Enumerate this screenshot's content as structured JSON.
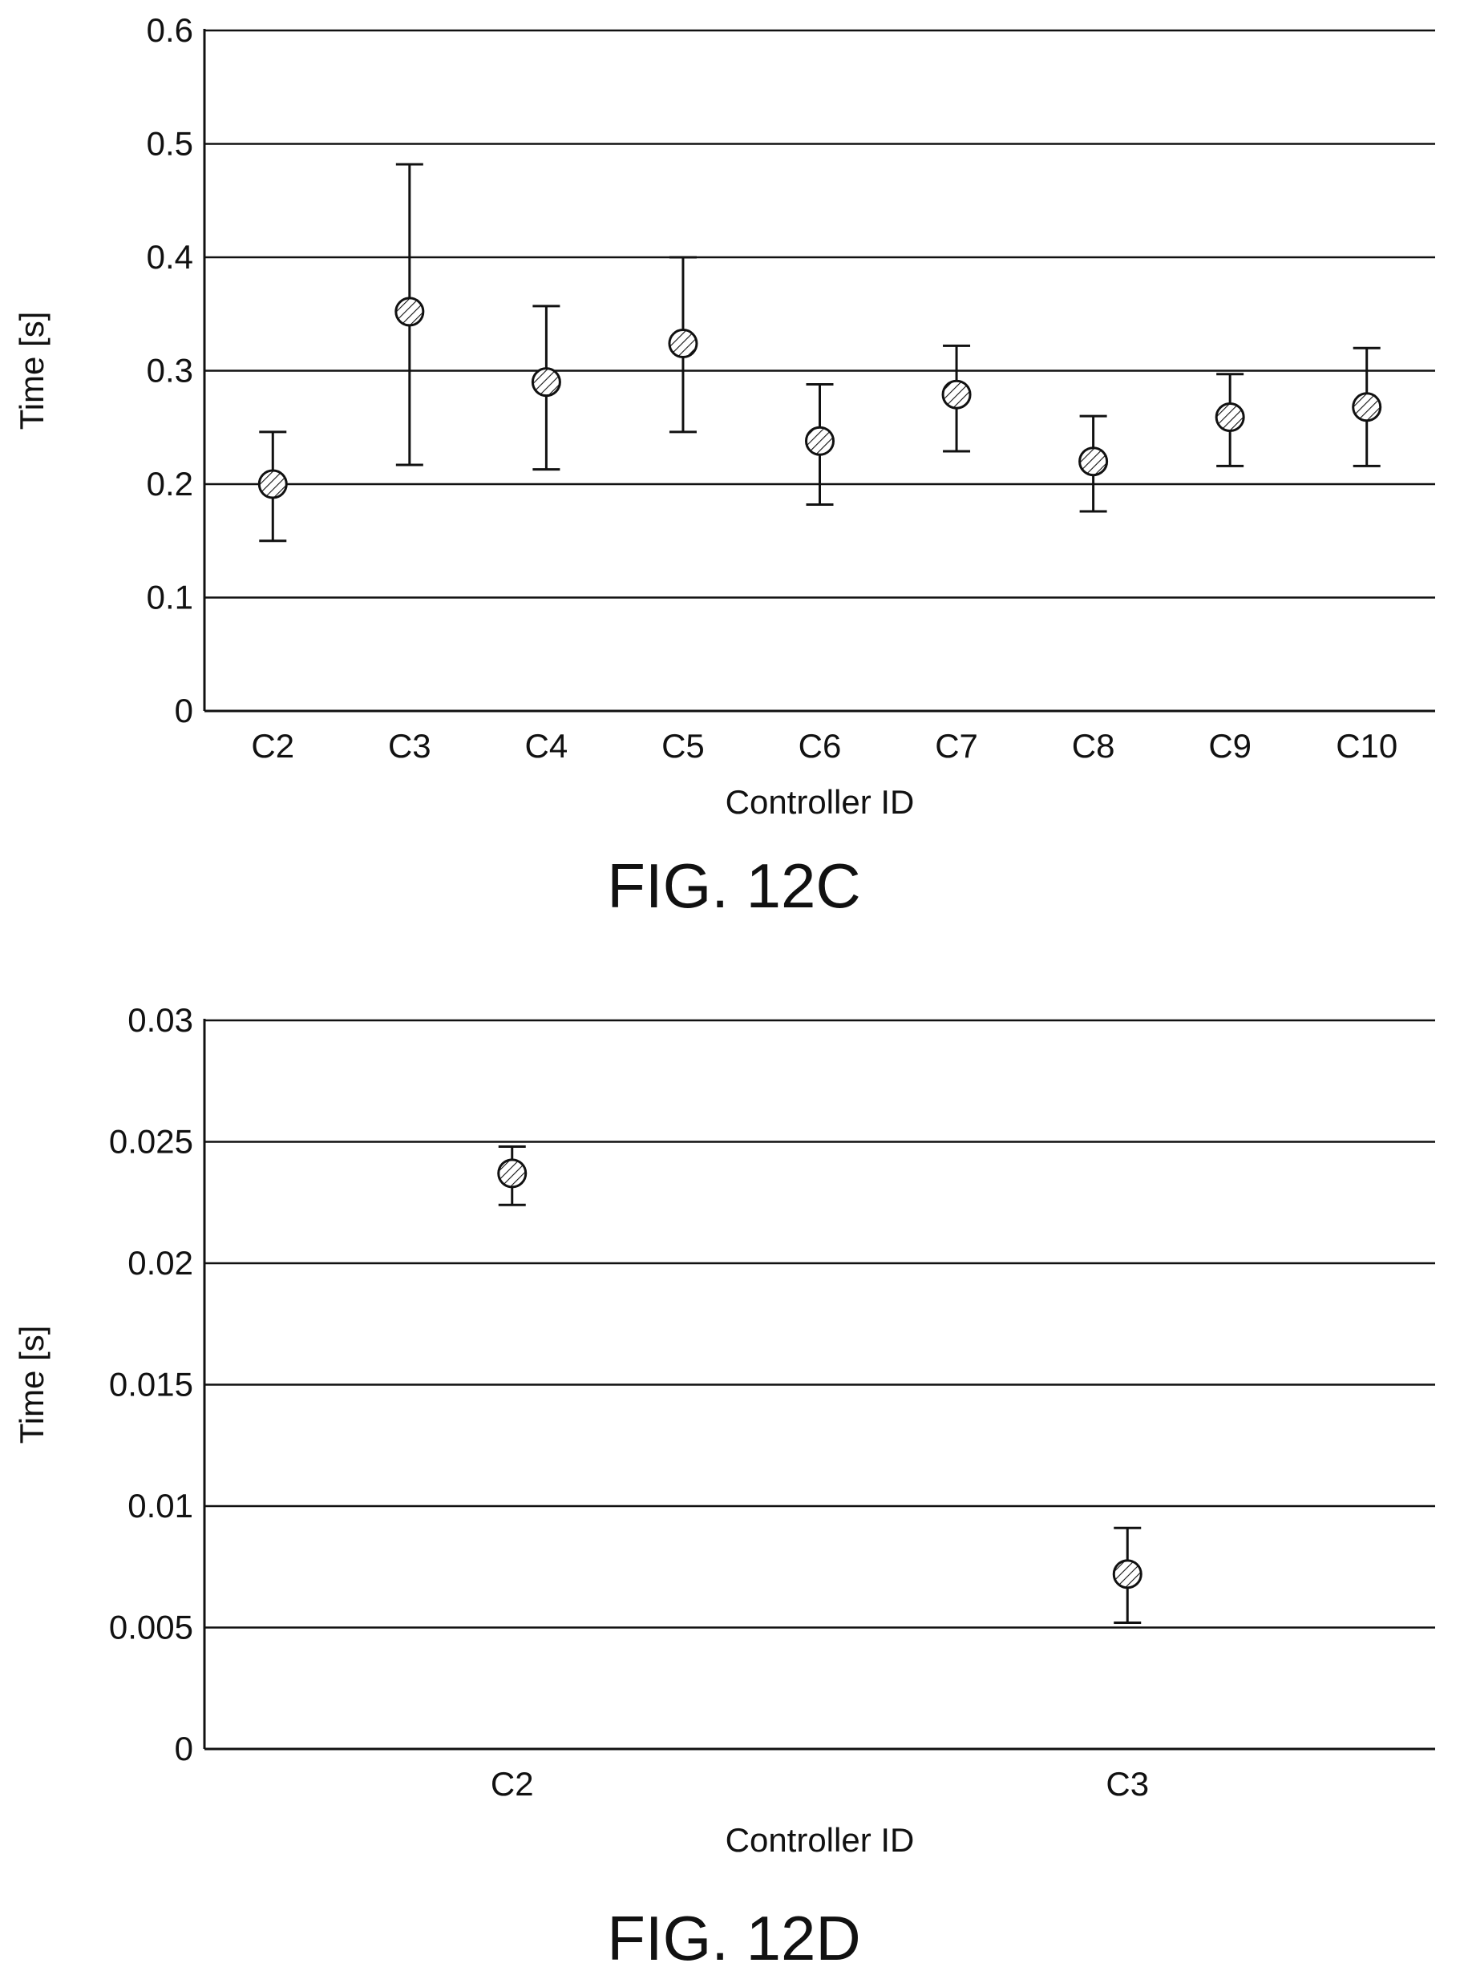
{
  "chart_data": [
    {
      "type": "scatter",
      "caption": "FIG. 12C",
      "xlabel": "Controller ID",
      "ylabel": "Time [s]",
      "ylim": [
        0,
        0.6
      ],
      "yticks": [
        "0",
        "0.1",
        "0.2",
        "0.3",
        "0.4",
        "0.5",
        "0.6"
      ],
      "ytick_values": [
        0,
        0.1,
        0.2,
        0.3,
        0.4,
        0.5,
        0.6
      ],
      "grid": true,
      "error_bars": true,
      "categories": [
        "C2",
        "C3",
        "C4",
        "C5",
        "C6",
        "C7",
        "C8",
        "C9",
        "C10"
      ],
      "values": [
        0.2,
        0.352,
        0.29,
        0.324,
        0.238,
        0.279,
        0.22,
        0.259,
        0.268
      ],
      "lower": [
        0.15,
        0.217,
        0.213,
        0.246,
        0.182,
        0.229,
        0.176,
        0.216,
        0.216
      ],
      "upper": [
        0.246,
        0.482,
        0.357,
        0.4,
        0.288,
        0.322,
        0.26,
        0.297,
        0.32
      ]
    },
    {
      "type": "scatter",
      "caption": "FIG. 12D",
      "xlabel": "Controller ID",
      "ylabel": "Time [s]",
      "ylim": [
        0,
        0.03
      ],
      "yticks": [
        "0",
        "0.005",
        "0.01",
        "0.015",
        "0.02",
        "0.025",
        "0.03"
      ],
      "ytick_values": [
        0,
        0.005,
        0.01,
        0.015,
        0.02,
        0.025,
        0.03
      ],
      "grid": true,
      "error_bars": true,
      "categories": [
        "C2",
        "C3"
      ],
      "values": [
        0.0237,
        0.0072
      ],
      "lower": [
        0.0224,
        0.0052
      ],
      "upper": [
        0.0248,
        0.0091
      ]
    }
  ]
}
